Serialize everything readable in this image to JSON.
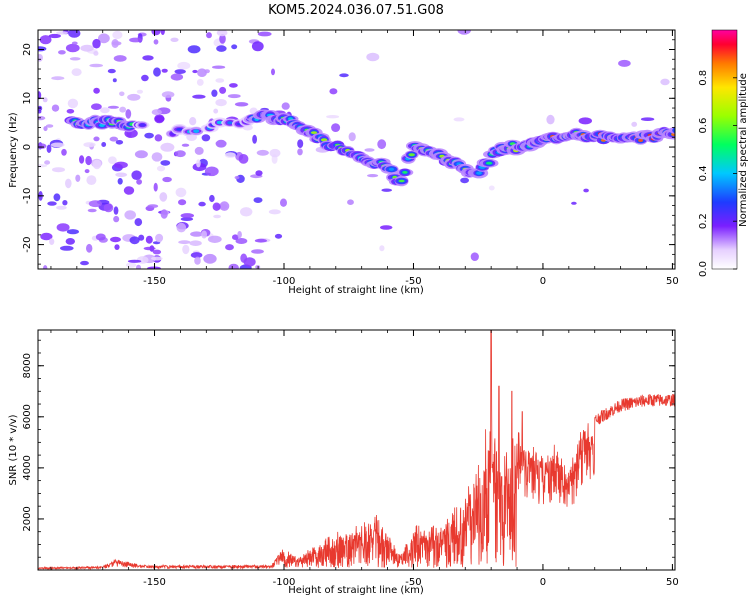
{
  "title": "KOM5.2024.036.07.51.G08",
  "colors": {
    "snr_line": "#e8392f",
    "axis": "#000000"
  },
  "chart_data": [
    {
      "type": "heatmap",
      "xlabel": "Height of straight line (km)",
      "ylabel": "Frequency (Hz)",
      "xlim": [
        -195,
        51
      ],
      "ylim": [
        -25,
        24
      ],
      "x_ticks": [
        -150,
        -100,
        -50,
        0,
        50
      ],
      "y_ticks": [
        -20,
        -10,
        0,
        10,
        20
      ],
      "colorbar": {
        "label": "Normalized spectral amplitude",
        "range": [
          0,
          1
        ],
        "ticks": [
          0.0,
          0.2,
          0.4,
          0.6,
          0.8
        ]
      },
      "ridge": {
        "x": [
          -180,
          -165,
          -150,
          -140,
          -110,
          -100,
          -95,
          -90,
          -80,
          -70,
          -60,
          -55,
          -50,
          -40,
          -30,
          -25,
          -20,
          -15,
          -10,
          0,
          10,
          20,
          30,
          40,
          51
        ],
        "y": [
          5,
          5,
          4,
          3,
          6,
          6,
          5,
          3,
          0,
          -2,
          -4,
          -7,
          0,
          -2,
          -4,
          -6,
          -2,
          0,
          0,
          1,
          3,
          2,
          2,
          2,
          3
        ]
      }
    },
    {
      "type": "line",
      "xlabel": "Height of straight line (km)",
      "ylabel": "SNR (10 * v/v)",
      "xlim": [
        -195,
        51
      ],
      "ylim": [
        0,
        9400
      ],
      "x_ticks": [
        -150,
        -100,
        -50,
        0,
        50
      ],
      "y_ticks": [
        2000,
        4000,
        6000,
        8000
      ],
      "envelope": {
        "x": [
          -195,
          -170,
          -165,
          -155,
          -105,
          -100,
          -95,
          -90,
          -80,
          -70,
          -65,
          -55,
          -50,
          -40,
          -30,
          -25,
          -20,
          -15,
          -10,
          0,
          5,
          10,
          15,
          20,
          25,
          30,
          40,
          51
        ],
        "y": [
          100,
          150,
          450,
          200,
          200,
          900,
          500,
          900,
          1500,
          1800,
          2300,
          600,
          1800,
          1800,
          3000,
          4500,
          6500,
          5000,
          5500,
          4500,
          5000,
          4000,
          5800,
          6000,
          6300,
          6600,
          6800,
          6800
        ]
      },
      "spikes": [
        {
          "x": -20,
          "y": 9400
        },
        {
          "x": -17,
          "y": 7200
        },
        {
          "x": -12,
          "y": 7000
        },
        {
          "x": -8,
          "y": 6200
        }
      ]
    }
  ]
}
